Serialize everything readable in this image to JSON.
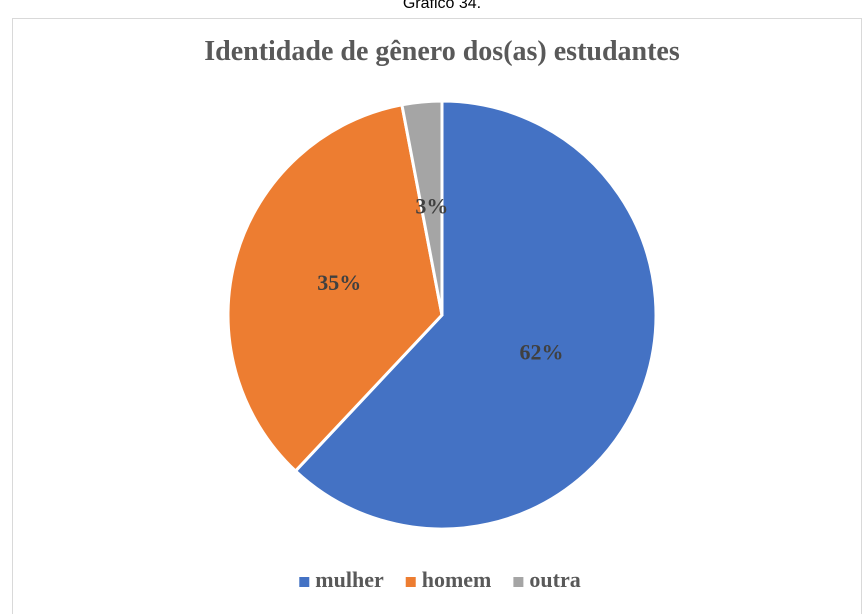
{
  "caption": "Gráfico 34.",
  "chart_data": {
    "type": "pie",
    "title": "Identidade de gênero dos(as) estudantes",
    "categories": [
      "mulher",
      "homem",
      "outra"
    ],
    "values": [
      62,
      35,
      3
    ],
    "value_labels": [
      "62%",
      "35%",
      "3%"
    ],
    "colors": [
      "#4472c4",
      "#ed7d31",
      "#a5a5a5"
    ],
    "legend": "bottom"
  }
}
